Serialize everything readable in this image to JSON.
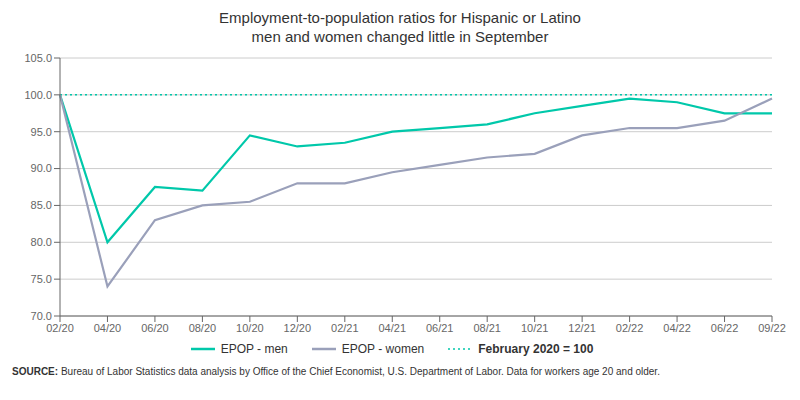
{
  "chart_data": {
    "type": "line",
    "title": "Employment-to-population ratios for Hispanic or Latino\nmen and women changed little in September",
    "categories": [
      "02/20",
      "04/20",
      "06/20",
      "08/20",
      "10/20",
      "12/20",
      "02/21",
      "04/21",
      "06/21",
      "08/21",
      "10/21",
      "12/21",
      "02/22",
      "04/22",
      "06/22",
      "09/22"
    ],
    "series": [
      {
        "name": "EPOP - men",
        "color": "#00c8aa",
        "values": [
          100.0,
          80.0,
          87.5,
          87.0,
          94.5,
          93.0,
          93.5,
          95.0,
          95.5,
          96.0,
          97.5,
          98.5,
          99.5,
          99.0,
          97.5,
          97.5
        ]
      },
      {
        "name": "EPOP - women",
        "color": "#9aa0ba",
        "values": [
          100.0,
          74.0,
          83.0,
          85.0,
          85.5,
          88.0,
          88.0,
          89.5,
          90.5,
          91.5,
          92.0,
          94.5,
          95.5,
          95.5,
          96.5,
          99.5
        ]
      }
    ],
    "annotations": [
      {
        "y": 100.0,
        "text": "February 2020 = 100",
        "color": "#00c8aa",
        "line_style": "dotted"
      }
    ],
    "ylim": [
      70.0,
      105.0
    ],
    "yticks": [
      {
        "value": 70.0,
        "label": "70.0"
      },
      {
        "value": 75.0,
        "label": "75.0"
      },
      {
        "value": 80.0,
        "label": "80.0"
      },
      {
        "value": 85.0,
        "label": "85.0"
      },
      {
        "value": 90.0,
        "label": "90.0"
      },
      {
        "value": 95.0,
        "label": "95.0"
      },
      {
        "value": 100.0,
        "label": "100.0"
      },
      {
        "value": 105.0,
        "label": "105.0"
      }
    ],
    "grid": true,
    "legend": "bottom",
    "source_label": "SOURCE:",
    "source": "Bureau of Labor Statistics data analysis by Office of the Chief Economist, U.S. Department of Labor. Data for workers age 20 and older."
  }
}
